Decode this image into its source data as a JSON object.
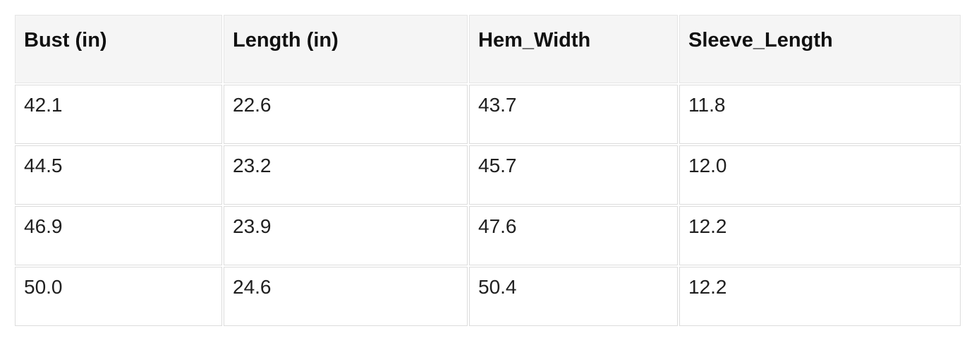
{
  "colors": {
    "page_background": "#ffffff",
    "header_background": "#f5f5f5",
    "cell_border": "#dcdcdc",
    "header_border": "#e5e5e5",
    "text": "#1f1f1f"
  },
  "table": {
    "columns": [
      "Bust (in)",
      "Length (in)",
      "Hem_Width",
      "Sleeve_Length"
    ],
    "rows": [
      [
        "42.1",
        "22.6",
        "43.7",
        "11.8"
      ],
      [
        "44.5",
        "23.2",
        "45.7",
        "12.0"
      ],
      [
        "46.9",
        "23.9",
        "47.6",
        "12.2"
      ],
      [
        "50.0",
        "24.6",
        "50.4",
        "12.2"
      ]
    ]
  },
  "chart_data": {
    "type": "table",
    "title": "",
    "columns": [
      "Bust (in)",
      "Length (in)",
      "Hem_Width",
      "Sleeve_Length"
    ],
    "rows": [
      [
        42.1,
        22.6,
        43.7,
        11.8
      ],
      [
        44.5,
        23.2,
        45.7,
        12.0
      ],
      [
        46.9,
        23.9,
        47.6,
        12.2
      ],
      [
        50.0,
        24.6,
        50.4,
        12.2
      ]
    ]
  }
}
